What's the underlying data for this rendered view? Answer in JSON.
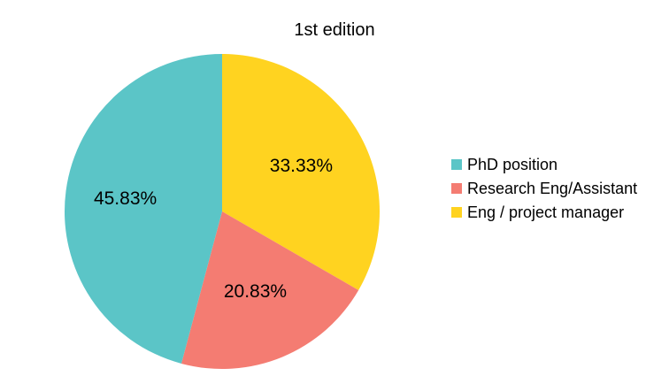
{
  "chart_data": {
    "type": "pie",
    "title": "1st edition",
    "categories": [
      "PhD position",
      "Research Eng/Assistant",
      "Eng / project manager"
    ],
    "values": [
      45.83,
      20.83,
      33.33
    ],
    "value_labels": [
      "45.83%",
      "20.83%",
      "33.33%"
    ],
    "colors": [
      "#5bc5c7",
      "#f47c72",
      "#ffd320"
    ],
    "start_angle_deg": 0,
    "direction": "counterclockwise from top",
    "legend_position": "right"
  }
}
